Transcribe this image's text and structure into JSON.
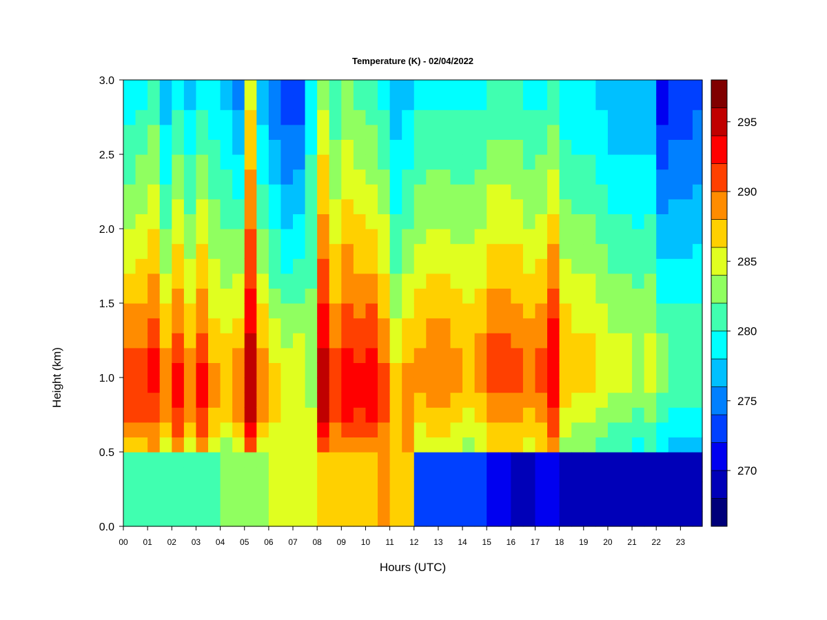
{
  "chart_data": {
    "type": "heatmap",
    "title": "Temperature (K) - 02/04/2022",
    "xlabel": "Hours (UTC)",
    "ylabel": "Height (km)",
    "xlim": [
      0,
      23.9
    ],
    "ylim": [
      0.0,
      3.0
    ],
    "x_ticks": [
      "00",
      "01",
      "02",
      "03",
      "04",
      "05",
      "06",
      "07",
      "08",
      "09",
      "10",
      "11",
      "12",
      "13",
      "14",
      "15",
      "16",
      "17",
      "18",
      "19",
      "20",
      "21",
      "22",
      "23"
    ],
    "y_ticks": [
      "0.0",
      "0.5",
      "1.0",
      "1.5",
      "2.0",
      "2.5",
      "3.0"
    ],
    "colorbar": {
      "min": 266,
      "max": 298,
      "step": 2,
      "ticks": [
        "270",
        "275",
        "280",
        "285",
        "290",
        "295"
      ],
      "colors": [
        "#00007a",
        "#0000b8",
        "#0000f0",
        "#0040ff",
        "#0080ff",
        "#00c0ff",
        "#00ffff",
        "#40ffb0",
        "#90ff60",
        "#e0ff20",
        "#ffd000",
        "#ff8c00",
        "#ff4000",
        "#ff0000",
        "#c00000",
        "#800000"
      ]
    },
    "heights_km": [
      0.0,
      0.1,
      0.2,
      0.3,
      0.4,
      0.5,
      0.6,
      0.7,
      0.8,
      0.9,
      1.0,
      1.1,
      1.2,
      1.3,
      1.4,
      1.5,
      1.6,
      1.7,
      1.8,
      1.9,
      2.0,
      2.1,
      2.2,
      2.3,
      2.4,
      2.5,
      2.6,
      2.7,
      2.8,
      2.9,
      3.0
    ],
    "hours_utc": [
      0,
      0.5,
      1,
      1.5,
      2,
      2.5,
      3,
      3.5,
      4,
      4.5,
      5,
      5.5,
      6,
      6.5,
      7,
      7.5,
      8,
      8.5,
      9,
      9.5,
      10,
      10.5,
      11,
      11.5,
      12,
      12.5,
      13,
      13.5,
      14,
      14.5,
      15,
      15.5,
      16,
      16.5,
      17,
      17.5,
      18,
      18.5,
      19,
      19.5,
      20,
      20.5,
      21,
      21.5,
      22,
      22.5,
      23,
      23.5
    ],
    "peak_temperature_k": [
      292,
      292,
      293,
      290,
      293,
      290,
      293,
      289,
      288,
      290,
      296,
      290,
      287,
      286,
      285,
      283,
      296,
      292,
      294,
      293,
      294,
      291,
      286,
      288,
      289,
      290,
      290,
      289,
      288,
      289,
      291,
      291,
      291,
      290,
      291,
      294,
      288,
      287,
      287,
      286,
      285,
      285,
      284,
      285,
      283,
      282,
      282,
      282
    ],
    "peak_height_km": [
      1.0,
      1.0,
      1.1,
      1.0,
      1.0,
      1.0,
      1.0,
      1.0,
      1.0,
      1.0,
      1.0,
      1.0,
      1.0,
      1.0,
      1.2,
      1.2,
      1.0,
      1.0,
      1.0,
      1.0,
      1.0,
      1.0,
      1.1,
      1.1,
      1.1,
      1.1,
      1.1,
      1.1,
      1.2,
      1.2,
      1.2,
      1.2,
      1.1,
      1.1,
      1.1,
      1.2,
      1.2,
      1.2,
      1.2,
      1.2,
      1.2,
      1.2,
      1.2,
      1.2,
      1.2,
      1.2,
      1.2,
      1.2
    ],
    "surface_temperature_k": [
      280,
      280,
      280,
      280,
      280,
      280,
      281,
      281,
      282,
      283,
      283,
      283,
      284,
      284,
      285,
      286,
      286,
      287,
      287,
      287,
      287,
      288,
      288,
      288,
      272,
      272,
      272,
      272,
      272,
      272,
      270,
      270,
      269,
      269,
      270,
      270,
      269,
      268,
      268,
      268,
      268,
      268,
      268,
      268,
      268,
      268,
      268,
      268
    ],
    "top_temperature_k": [
      278,
      279,
      280,
      276,
      279,
      277,
      279,
      278,
      277,
      275,
      285,
      276,
      274,
      272,
      272,
      279,
      283,
      280,
      282,
      281,
      280,
      279,
      276,
      277,
      279,
      279,
      279,
      279,
      279,
      279,
      280,
      280,
      280,
      279,
      279,
      280,
      278,
      278,
      278,
      277,
      276,
      276,
      276,
      276,
      270,
      272,
      272,
      273
    ]
  }
}
